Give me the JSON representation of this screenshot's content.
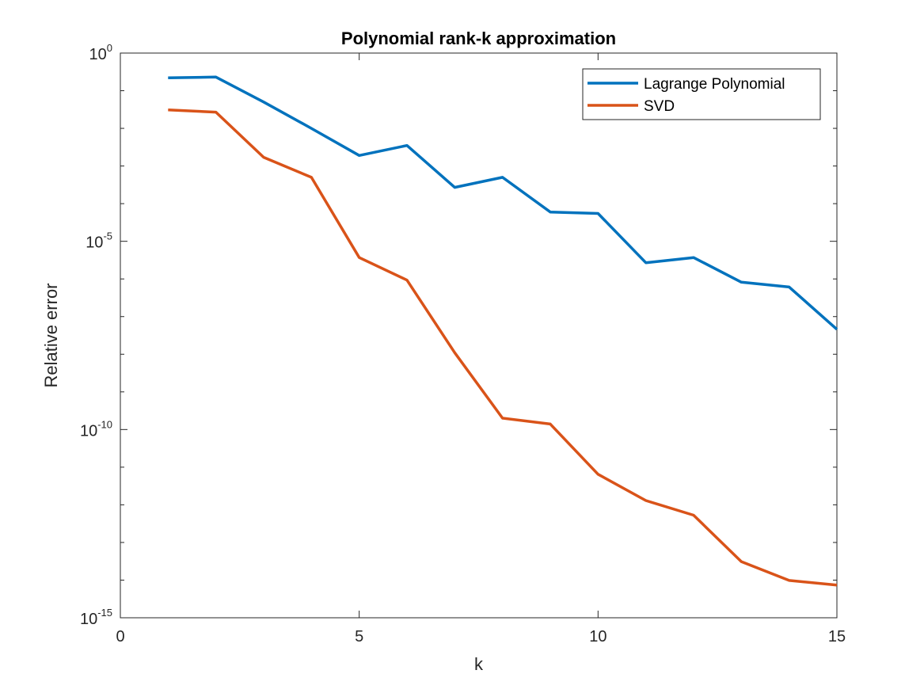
{
  "chart_data": {
    "type": "line",
    "title": "Polynomial rank-k approximation",
    "xlabel": "k",
    "ylabel": "Relative error",
    "xlim": [
      0,
      15
    ],
    "ylim": [
      1e-15,
      1
    ],
    "yscale": "log",
    "grid": false,
    "legend_position": "top-right",
    "x": [
      1,
      2,
      3,
      4,
      5,
      6,
      7,
      8,
      9,
      10,
      11,
      12,
      13,
      14,
      15
    ],
    "x_ticks": [
      {
        "value": 0,
        "label": "0"
      },
      {
        "value": 5,
        "label": "5"
      },
      {
        "value": 10,
        "label": "10"
      },
      {
        "value": 15,
        "label": "15"
      }
    ],
    "y_ticks": [
      {
        "value": 0,
        "base": "10",
        "exp": "0"
      },
      {
        "value": -5,
        "base": "10",
        "exp": "-5"
      },
      {
        "value": -10,
        "base": "10",
        "exp": "-10"
      },
      {
        "value": -15,
        "base": "10",
        "exp": "-15"
      }
    ],
    "series": [
      {
        "name": "Lagrange Polynomial",
        "color": "#0072BD",
        "values": [
          0.22,
          0.23,
          0.05,
          0.01,
          0.0019,
          0.0035,
          0.00027,
          0.0005,
          6e-05,
          5.5e-05,
          2.7e-06,
          3.7e-06,
          8.2e-07,
          6.1e-07,
          4.6e-08
        ]
      },
      {
        "name": "SVD",
        "color": "#D95319",
        "values": [
          0.031,
          0.027,
          0.0017,
          0.0005,
          3.7e-06,
          9.3e-07,
          1.1e-08,
          2e-10,
          1.4e-10,
          6.5e-12,
          1.3e-12,
          5.3e-13,
          3.1e-14,
          9.8e-15,
          7.4e-15
        ]
      }
    ]
  }
}
